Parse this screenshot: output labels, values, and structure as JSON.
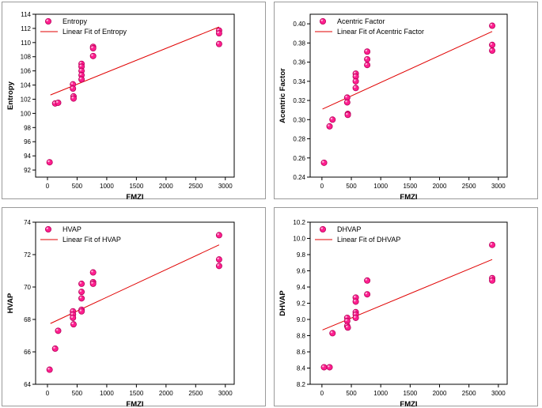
{
  "colors": {
    "marker_fill": "#ff1f8f",
    "marker_stroke": "#b8005a",
    "fit_line": "#e00000",
    "axis": "#000000",
    "panel_border": "#9a9a9a"
  },
  "chart_data": [
    {
      "type": "scatter",
      "title": "",
      "xlabel": "FMZI",
      "ylabel": "Entropy",
      "xlim": [
        -200,
        3150
      ],
      "ylim": [
        91,
        114
      ],
      "xticks": [
        0,
        500,
        1000,
        1500,
        2000,
        2500,
        3000
      ],
      "yticks": [
        92,
        94,
        96,
        98,
        100,
        102,
        104,
        106,
        108,
        110,
        112,
        114
      ],
      "tick_decimals": 0,
      "legend": {
        "position": "top-left",
        "points_label": "Entropy",
        "fit_label": "Linear Fit of Entropy"
      },
      "points": [
        [
          36,
          93.1
        ],
        [
          130,
          101.4
        ],
        [
          180,
          101.5
        ],
        [
          430,
          104.1
        ],
        [
          430,
          103.5
        ],
        [
          440,
          102.4
        ],
        [
          440,
          102.1
        ],
        [
          575,
          107.0
        ],
        [
          575,
          106.6
        ],
        [
          575,
          106.0
        ],
        [
          575,
          105.4
        ],
        [
          575,
          104.8
        ],
        [
          770,
          109.4
        ],
        [
          770,
          109.2
        ],
        [
          770,
          108.1
        ],
        [
          2895,
          111.7
        ],
        [
          2895,
          111.3
        ],
        [
          2895,
          109.8
        ]
      ],
      "fit": [
        [
          50,
          102.6
        ],
        [
          2895,
          112.2
        ]
      ]
    },
    {
      "type": "scatter",
      "title": "",
      "xlabel": "FMZI",
      "ylabel": "Acentric Factor",
      "xlim": [
        -200,
        3150
      ],
      "ylim": [
        0.24,
        0.41
      ],
      "xticks": [
        0,
        500,
        1000,
        1500,
        2000,
        2500,
        3000
      ],
      "yticks": [
        0.24,
        0.26,
        0.28,
        0.3,
        0.32,
        0.34,
        0.36,
        0.38,
        0.4
      ],
      "tick_decimals": 2,
      "legend": {
        "position": "top-left",
        "points_label": "Acentric Factor",
        "fit_label": "Linear Fit of Acentric Factor"
      },
      "points": [
        [
          36,
          0.255
        ],
        [
          130,
          0.293
        ],
        [
          180,
          0.3
        ],
        [
          430,
          0.323
        ],
        [
          430,
          0.318
        ],
        [
          440,
          0.306
        ],
        [
          440,
          0.305
        ],
        [
          575,
          0.348
        ],
        [
          575,
          0.345
        ],
        [
          575,
          0.34
        ],
        [
          575,
          0.333
        ],
        [
          770,
          0.371
        ],
        [
          770,
          0.363
        ],
        [
          770,
          0.357
        ],
        [
          2895,
          0.398
        ],
        [
          2895,
          0.378
        ],
        [
          2895,
          0.372
        ]
      ],
      "fit": [
        [
          10,
          0.311
        ],
        [
          2895,
          0.392
        ]
      ]
    },
    {
      "type": "scatter",
      "title": "",
      "xlabel": "FMZI",
      "ylabel": "HVAP",
      "xlim": [
        -200,
        3150
      ],
      "ylim": [
        64,
        74
      ],
      "xticks": [
        0,
        500,
        1000,
        1500,
        2000,
        2500,
        3000
      ],
      "yticks": [
        64,
        66,
        68,
        70,
        72,
        74
      ],
      "tick_decimals": 0,
      "legend": {
        "position": "top-left",
        "points_label": "HVAP",
        "fit_label": "Linear Fit of HVAP"
      },
      "points": [
        [
          36,
          64.9
        ],
        [
          130,
          66.2
        ],
        [
          180,
          67.3
        ],
        [
          430,
          68.5
        ],
        [
          430,
          68.3
        ],
        [
          430,
          68.1
        ],
        [
          440,
          67.7
        ],
        [
          575,
          70.2
        ],
        [
          575,
          69.7
        ],
        [
          575,
          69.3
        ],
        [
          575,
          68.6
        ],
        [
          575,
          68.5
        ],
        [
          770,
          70.9
        ],
        [
          770,
          70.3
        ],
        [
          770,
          70.2
        ],
        [
          2895,
          73.2
        ],
        [
          2895,
          71.7
        ],
        [
          2895,
          71.3
        ]
      ],
      "fit": [
        [
          50,
          67.75
        ],
        [
          2895,
          72.6
        ]
      ]
    },
    {
      "type": "scatter",
      "title": "",
      "xlabel": "FMZI",
      "ylabel": "DHVAP",
      "xlim": [
        -200,
        3150
      ],
      "ylim": [
        8.2,
        10.2
      ],
      "xticks": [
        0,
        500,
        1000,
        1500,
        2000,
        2500,
        3000
      ],
      "yticks": [
        8.2,
        8.4,
        8.6,
        8.8,
        9.0,
        9.2,
        9.4,
        9.6,
        9.8,
        10.0,
        10.2
      ],
      "tick_decimals": 1,
      "legend": {
        "position": "top-left",
        "points_label": "DHVAP",
        "fit_label": "Linear Fit of DHVAP"
      },
      "points": [
        [
          36,
          8.41
        ],
        [
          130,
          8.41
        ],
        [
          180,
          8.83
        ],
        [
          430,
          9.02
        ],
        [
          430,
          8.98
        ],
        [
          430,
          8.92
        ],
        [
          440,
          8.9
        ],
        [
          575,
          9.27
        ],
        [
          575,
          9.22
        ],
        [
          575,
          9.09
        ],
        [
          575,
          9.06
        ],
        [
          575,
          9.02
        ],
        [
          770,
          9.48
        ],
        [
          770,
          9.31
        ],
        [
          2895,
          9.92
        ],
        [
          2895,
          9.51
        ],
        [
          2895,
          9.48
        ]
      ],
      "fit": [
        [
          10,
          8.87
        ],
        [
          2895,
          9.74
        ]
      ]
    }
  ]
}
